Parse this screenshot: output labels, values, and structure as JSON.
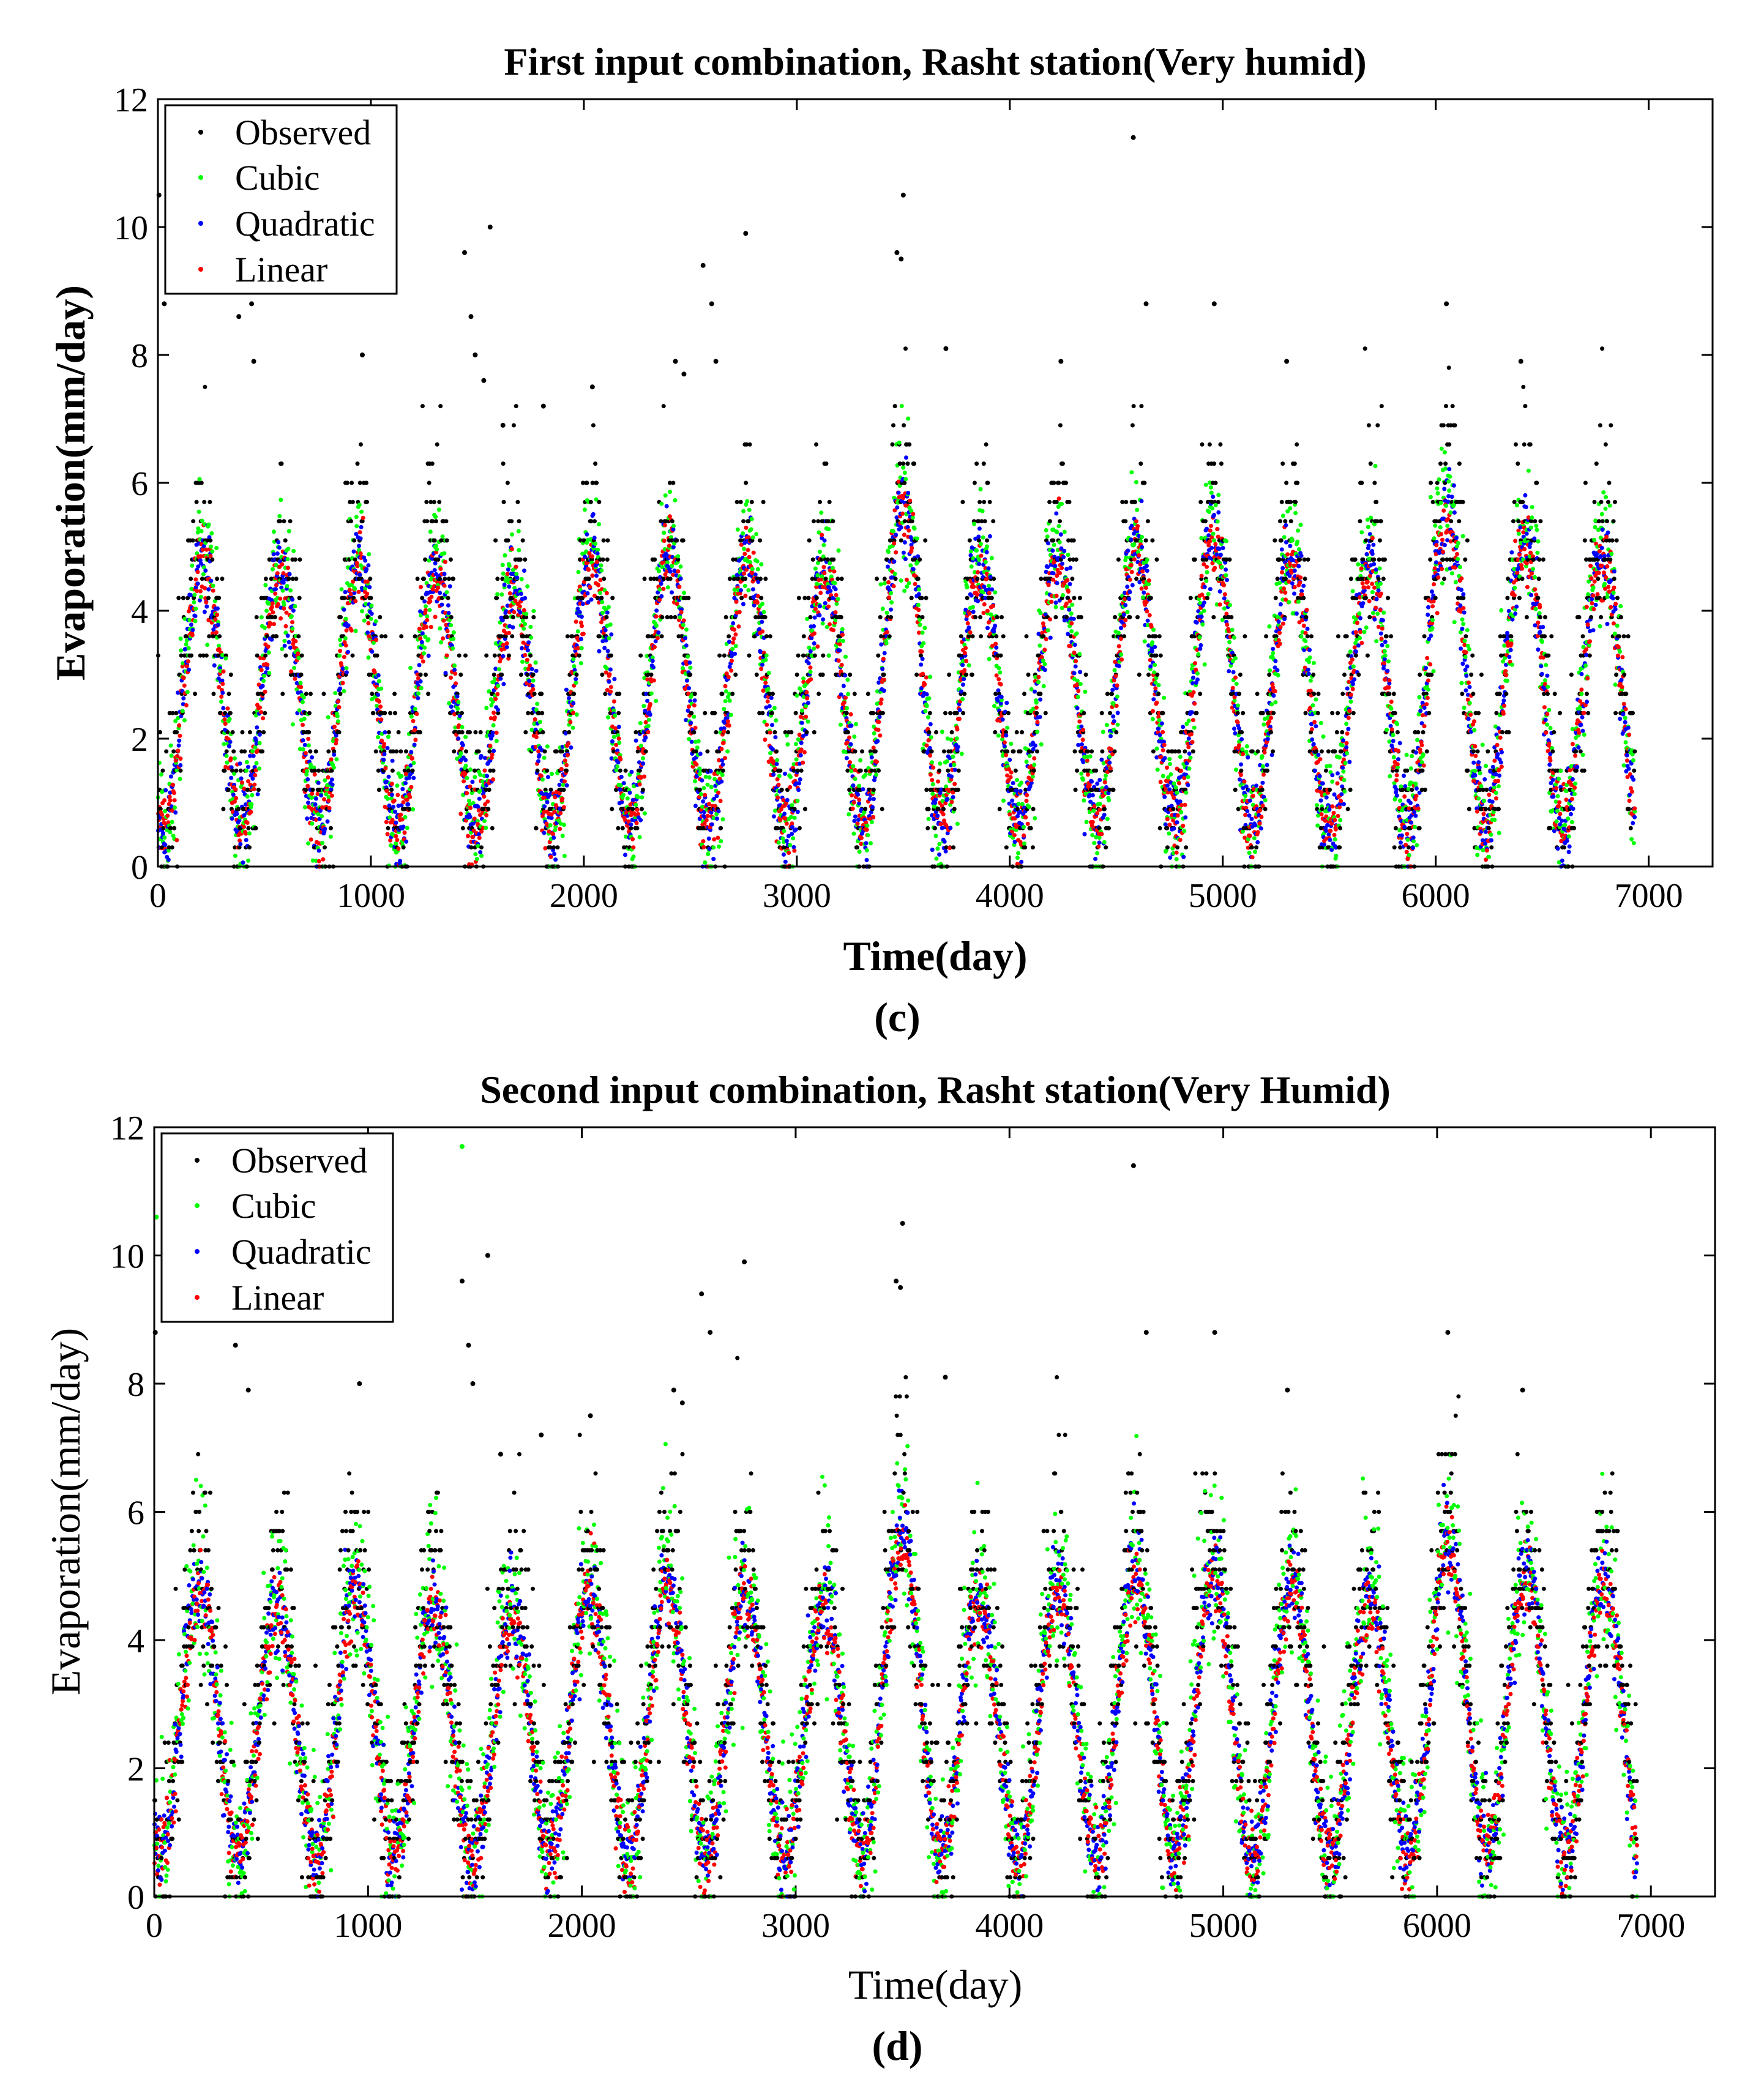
{
  "chart_data": [
    {
      "type": "scatter",
      "panel_label": "(c)",
      "title": "First input combination, Rasht station(Very humid)",
      "xlabel": "Time(day)",
      "ylabel": "Evaporation(mm/day)",
      "labels_bold": true,
      "xlim": [
        0,
        7300
      ],
      "ylim": [
        0,
        12
      ],
      "xticks": [
        0,
        1000,
        2000,
        3000,
        4000,
        5000,
        6000,
        7000
      ],
      "yticks": [
        0,
        2,
        4,
        6,
        8,
        10,
        12
      ],
      "legend_position": "top-left",
      "series": [
        {
          "name": "Observed",
          "color": "#000000"
        },
        {
          "name": "Cubic",
          "color": "#00ff00"
        },
        {
          "name": "Quadratic",
          "color": "#0000ff"
        },
        {
          "name": "Linear",
          "color": "#ff0000"
        }
      ],
      "days": 6935,
      "period_days": 365,
      "first_peak_day": 210,
      "observed_peak_values": [
        5.3,
        5.0,
        5.2,
        5.0,
        4.8,
        5.2,
        5.4,
        5.2,
        5.0,
        6.2,
        5.1,
        5.3,
        5.5,
        5.6,
        5.3,
        5.1,
        6.0,
        5.6,
        5.4
      ],
      "trough_value": 0.7,
      "model_predictions_peak_range": [
        4.0,
        5.5
      ],
      "outliers_observed": [
        [
          5,
          10.5
        ],
        [
          30,
          8.8
        ],
        [
          380,
          8.6
        ],
        [
          440,
          8.8
        ],
        [
          450,
          7.9
        ],
        [
          960,
          8.0
        ],
        [
          1440,
          9.6
        ],
        [
          1470,
          8.6
        ],
        [
          1490,
          8.0
        ],
        [
          1530,
          7.6
        ],
        [
          1560,
          10.0
        ],
        [
          1620,
          6.9
        ],
        [
          1810,
          7.2
        ],
        [
          2040,
          7.5
        ],
        [
          2430,
          7.9
        ],
        [
          2470,
          7.7
        ],
        [
          2560,
          9.4
        ],
        [
          2600,
          8.8
        ],
        [
          2620,
          7.9
        ],
        [
          2760,
          9.9
        ],
        [
          3470,
          9.6
        ],
        [
          3490,
          9.5
        ],
        [
          3500,
          10.5
        ],
        [
          3700,
          8.1
        ],
        [
          4240,
          7.9
        ],
        [
          4580,
          11.4
        ],
        [
          4640,
          8.8
        ],
        [
          4960,
          8.8
        ],
        [
          5300,
          7.9
        ],
        [
          6050,
          8.8
        ],
        [
          6400,
          7.9
        ]
      ]
    },
    {
      "type": "scatter",
      "panel_label": "(d)",
      "title": "Second input combination, Rasht station(Very Humid)",
      "xlabel": "Time(day)",
      "ylabel": "Evaporation(mm/day)",
      "labels_bold": false,
      "xlim": [
        0,
        7300
      ],
      "ylim": [
        0,
        12
      ],
      "xticks": [
        0,
        1000,
        2000,
        3000,
        4000,
        5000,
        6000,
        7000
      ],
      "yticks": [
        0,
        2,
        4,
        6,
        8,
        10,
        12
      ],
      "legend_position": "top-left",
      "series": [
        {
          "name": "Observed",
          "color": "#000000"
        },
        {
          "name": "Cubic",
          "color": "#00ff00"
        },
        {
          "name": "Quadratic",
          "color": "#0000ff"
        },
        {
          "name": "Linear",
          "color": "#ff0000"
        }
      ],
      "days": 6935,
      "period_days": 365,
      "first_peak_day": 210,
      "observed_peak_values": [
        5.3,
        5.0,
        5.2,
        5.0,
        4.8,
        5.2,
        5.4,
        5.2,
        5.0,
        6.2,
        5.1,
        5.3,
        5.5,
        5.6,
        5.3,
        5.1,
        6.0,
        5.6,
        5.4
      ],
      "trough_value": 0.7,
      "model_predictions_peak_range": [
        4.0,
        6.5
      ],
      "outliers_observed": [
        [
          5,
          8.8
        ],
        [
          380,
          8.6
        ],
        [
          440,
          7.9
        ],
        [
          960,
          8.0
        ],
        [
          1440,
          9.6
        ],
        [
          1470,
          8.6
        ],
        [
          1490,
          8.0
        ],
        [
          1560,
          10.0
        ],
        [
          1620,
          6.9
        ],
        [
          1810,
          7.2
        ],
        [
          2040,
          7.5
        ],
        [
          2430,
          7.9
        ],
        [
          2470,
          7.7
        ],
        [
          2560,
          9.4
        ],
        [
          2600,
          8.8
        ],
        [
          2760,
          9.9
        ],
        [
          3470,
          9.6
        ],
        [
          3490,
          9.5
        ],
        [
          3500,
          10.5
        ],
        [
          3700,
          8.1
        ],
        [
          4580,
          11.4
        ],
        [
          4640,
          8.8
        ],
        [
          4960,
          8.8
        ],
        [
          5300,
          7.9
        ],
        [
          6050,
          8.8
        ],
        [
          6400,
          7.9
        ]
      ],
      "outliers_cubic": [
        [
          10,
          10.6
        ],
        [
          1440,
          11.7
        ]
      ]
    }
  ]
}
